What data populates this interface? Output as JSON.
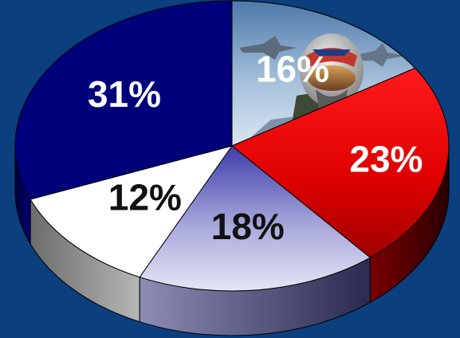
{
  "chart_data": {
    "type": "pie",
    "title": "",
    "style": "3d-exploded-perspective",
    "slices": [
      {
        "label": "16%",
        "value": 16,
        "color": "#bcd0e6",
        "fill_style": "photo-pilot-jet",
        "text_color": "#ffffff"
      },
      {
        "label": "23%",
        "value": 23,
        "color": "#e20000",
        "text_color": "#ffffff"
      },
      {
        "label": "18%",
        "value": 18,
        "color": "#cfd0ee",
        "text_color": "#111111"
      },
      {
        "label": "12%",
        "value": 12,
        "color": "#ffffff",
        "text_color": "#111111"
      },
      {
        "label": "31%",
        "value": 31,
        "color": "#00007a",
        "text_color": "#ffffff"
      }
    ],
    "background": "#0b3f7e",
    "legend": "none"
  }
}
